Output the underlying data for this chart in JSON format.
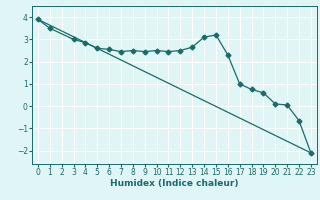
{
  "xlabel": "Humidex (Indice chaleur)",
  "xlim": [
    -0.5,
    23.5
  ],
  "ylim": [
    -2.6,
    4.5
  ],
  "yticks": [
    -2,
    -1,
    0,
    1,
    2,
    3,
    4
  ],
  "xticks": [
    0,
    1,
    2,
    3,
    4,
    5,
    6,
    7,
    8,
    9,
    10,
    11,
    12,
    13,
    14,
    15,
    16,
    17,
    18,
    19,
    20,
    21,
    22,
    23
  ],
  "bg_color": "#e0f5f5",
  "line_color": "#1a6b6b",
  "grid_color": "#ffffff",
  "line1_x": [
    0,
    1,
    3,
    4,
    5,
    6,
    7,
    8,
    9,
    10,
    11,
    12,
    13,
    14,
    15,
    16,
    17,
    18,
    19,
    20,
    21,
    22,
    23
  ],
  "line1_y": [
    3.9,
    3.5,
    3.0,
    2.85,
    2.6,
    2.55,
    2.45,
    2.5,
    2.45,
    2.5,
    2.45,
    2.5,
    2.65,
    3.1,
    3.2,
    2.3,
    1.0,
    0.75,
    0.6,
    0.1,
    0.05,
    -0.65,
    -2.1
  ],
  "line2_x": [
    0,
    23
  ],
  "line2_y": [
    3.9,
    -2.1
  ],
  "marker": "D",
  "markersize": 2.5,
  "tick_fontsize": 5.5,
  "xlabel_fontsize": 6.5
}
